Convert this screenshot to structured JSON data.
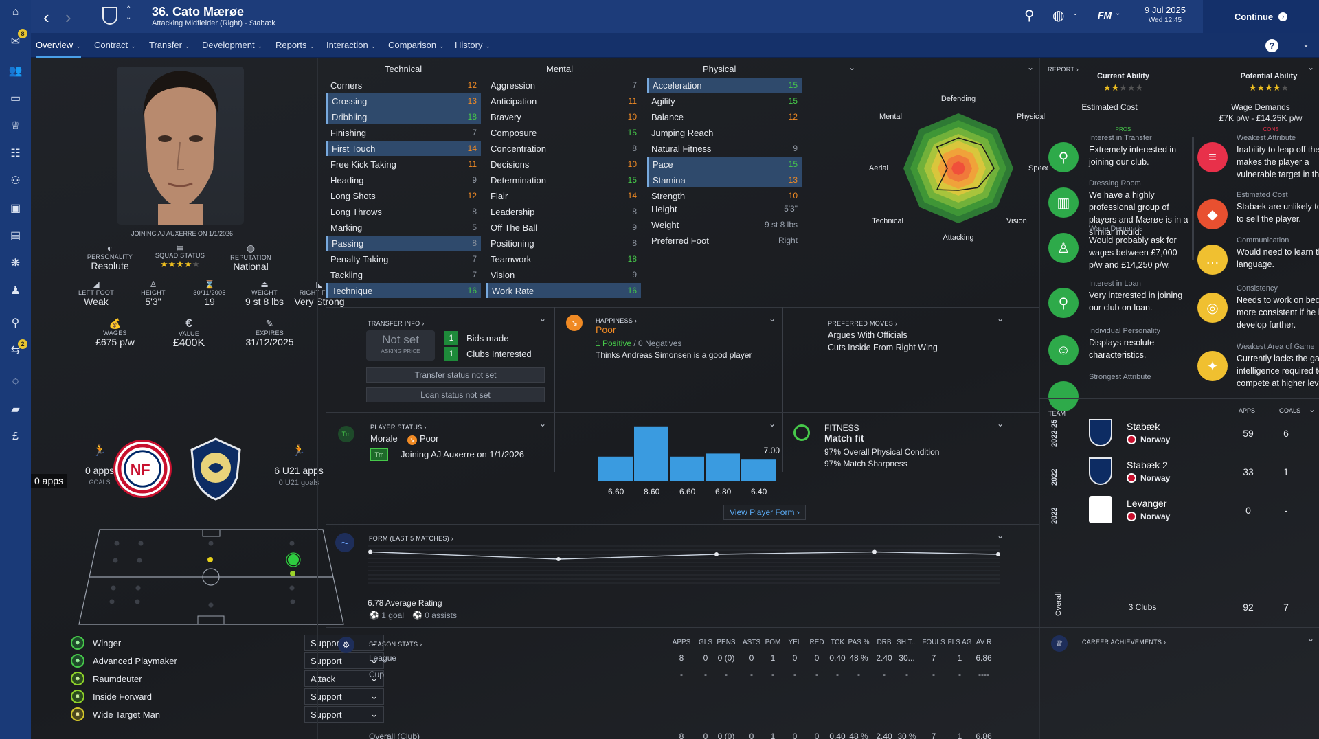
{
  "sidebar": {
    "inbox_badge": "8",
    "scout_badge": "2"
  },
  "header": {
    "player_name": "36. Cato Mærøe",
    "player_sub": "Attacking Midfielder (Right) - Stabæk",
    "date": "9 Jul 2025",
    "time": "Wed 12:45",
    "continue_label": "Continue",
    "fm_label": "FM"
  },
  "tabs": [
    "Overview",
    "Contract",
    "Transfer",
    "Development",
    "Reports",
    "Interaction",
    "Comparison",
    "History"
  ],
  "profile": {
    "joining": "JOINING AJ AUXERRE ON 1/1/2026",
    "personality_label": "PERSONALITY",
    "personality": "Resolute",
    "squad_label": "SQUAD STATUS",
    "reputation_label": "REPUTATION",
    "reputation": "National",
    "leftfoot_label": "LEFT FOOT",
    "leftfoot": "Weak",
    "height_label": "HEIGHT",
    "height": "5'3\"",
    "dob_label": "30/11/2005",
    "age": "19",
    "weight_label": "WEIGHT",
    "weight": "9 st 8 lbs",
    "rightfoot_label": "RIGHT FOOT",
    "rightfoot": "Very Strong",
    "wages_label": "WAGES",
    "wages": "£675 p/w",
    "value_label": "VALUE",
    "value": "£400K",
    "expires_label": "EXPIRES",
    "expires": "31/12/2025",
    "intl_apps": "0 apps",
    "intl_goals": "GOALS",
    "intl_tooltip": "0 apps",
    "u21_apps": "6 U21 apps",
    "u21_goals": "0 U21 goals"
  },
  "roles": [
    {
      "name": "Winger",
      "duty": "Support"
    },
    {
      "name": "Advanced Playmaker",
      "duty": "Support"
    },
    {
      "name": "Raumdeuter",
      "duty": "Attack"
    },
    {
      "name": "Inside Forward",
      "duty": "Support"
    },
    {
      "name": "Wide Target Man",
      "duty": "Support"
    }
  ],
  "attributes": {
    "technical_title": "Technical",
    "mental_title": "Mental",
    "physical_title": "Physical",
    "technical": [
      {
        "n": "Corners",
        "v": "12",
        "c": "#f08a24",
        "h": false
      },
      {
        "n": "Crossing",
        "v": "13",
        "c": "#f08a24",
        "h": true
      },
      {
        "n": "Dribbling",
        "v": "18",
        "c": "#46c84a",
        "h": true
      },
      {
        "n": "Finishing",
        "v": "7",
        "c": "#8c939e",
        "h": false
      },
      {
        "n": "First Touch",
        "v": "14",
        "c": "#f08a24",
        "h": true
      },
      {
        "n": "Free Kick Taking",
        "v": "11",
        "c": "#f08a24",
        "h": false
      },
      {
        "n": "Heading",
        "v": "9",
        "c": "#8c939e",
        "h": false
      },
      {
        "n": "Long Shots",
        "v": "12",
        "c": "#f08a24",
        "h": false
      },
      {
        "n": "Long Throws",
        "v": "8",
        "c": "#8c939e",
        "h": false
      },
      {
        "n": "Marking",
        "v": "5",
        "c": "#8c939e",
        "h": false
      },
      {
        "n": "Passing",
        "v": "8",
        "c": "#8c939e",
        "h": true
      },
      {
        "n": "Penalty Taking",
        "v": "7",
        "c": "#8c939e",
        "h": false
      },
      {
        "n": "Tackling",
        "v": "7",
        "c": "#8c939e",
        "h": false
      },
      {
        "n": "Technique",
        "v": "16",
        "c": "#46c84a",
        "h": true
      }
    ],
    "mental": [
      {
        "n": "Aggression",
        "v": "7",
        "c": "#8c939e",
        "h": false
      },
      {
        "n": "Anticipation",
        "v": "11",
        "c": "#f08a24",
        "h": false
      },
      {
        "n": "Bravery",
        "v": "10",
        "c": "#f08a24",
        "h": false
      },
      {
        "n": "Composure",
        "v": "15",
        "c": "#46c84a",
        "h": false
      },
      {
        "n": "Concentration",
        "v": "8",
        "c": "#8c939e",
        "h": false
      },
      {
        "n": "Decisions",
        "v": "10",
        "c": "#f08a24",
        "h": false
      },
      {
        "n": "Determination",
        "v": "15",
        "c": "#46c84a",
        "h": false
      },
      {
        "n": "Flair",
        "v": "14",
        "c": "#f08a24",
        "h": false
      },
      {
        "n": "Leadership",
        "v": "8",
        "c": "#8c939e",
        "h": false
      },
      {
        "n": "Off The Ball",
        "v": "9",
        "c": "#8c939e",
        "h": false
      },
      {
        "n": "Positioning",
        "v": "8",
        "c": "#8c939e",
        "h": false
      },
      {
        "n": "Teamwork",
        "v": "18",
        "c": "#46c84a",
        "h": false
      },
      {
        "n": "Vision",
        "v": "9",
        "c": "#8c939e",
        "h": false
      },
      {
        "n": "Work Rate",
        "v": "16",
        "c": "#46c84a",
        "h": true
      }
    ],
    "physical": [
      {
        "n": "Acceleration",
        "v": "15",
        "c": "#46c84a",
        "h": true
      },
      {
        "n": "Agility",
        "v": "15",
        "c": "#46c84a",
        "h": false
      },
      {
        "n": "Balance",
        "v": "12",
        "c": "#f08a24",
        "h": false
      },
      {
        "n": "Jumping Reach",
        "v": "",
        "c": "#8c939e",
        "h": false
      },
      {
        "n": "Natural Fitness",
        "v": "9",
        "c": "#8c939e",
        "h": false
      },
      {
        "n": "Pace",
        "v": "15",
        "c": "#46c84a",
        "h": true
      },
      {
        "n": "Stamina",
        "v": "13",
        "c": "#f08a24",
        "h": true
      },
      {
        "n": "Strength",
        "v": "10",
        "c": "#f08a24",
        "h": false
      }
    ],
    "extra": [
      {
        "n": "Height",
        "v": "5'3\""
      },
      {
        "n": "Weight",
        "v": "9 st 8 lbs"
      },
      {
        "n": "Preferred Foot",
        "v": "Right"
      }
    ]
  },
  "radar_labels": [
    "Defending",
    "Physical",
    "Speed",
    "Vision",
    "Attacking",
    "Technical",
    "Aerial",
    "Mental"
  ],
  "transfer": {
    "title": "TRANSFER INFO",
    "price": "Not set",
    "price_label": "ASKING PRICE",
    "bids_count": "1",
    "bids_label": "Bids made",
    "clubs_count": "1",
    "clubs_label": "Clubs Interested",
    "status": "Transfer status not set",
    "loan": "Loan status not set"
  },
  "happiness": {
    "title": "HAPPINESS",
    "value": "Poor",
    "positive": "1 Positive",
    "negatives": "/ 0 Negatives",
    "note": "Thinks Andreas Simonsen is a good player"
  },
  "preferred": {
    "title": "PREFERRED MOVES",
    "moves": [
      "Argues With Officials",
      "Cuts Inside From Right Wing"
    ]
  },
  "status": {
    "title": "PLAYER STATUS",
    "morale_label": "Morale",
    "morale": "Poor",
    "tm_icon": "Tm",
    "note": "Joining AJ Auxerre on 1/1/2026"
  },
  "form_bars": {
    "values": [
      6.6,
      8.6,
      6.6,
      6.8,
      6.4
    ],
    "labels": [
      "6.60",
      "8.60",
      "6.60",
      "6.80",
      "6.40"
    ],
    "ref": "7.00",
    "link": "View Player Form"
  },
  "fitness": {
    "title": "FITNESS",
    "status": "Match fit",
    "cond": "97% Overall Physical Condition",
    "sharp": "97% Match Sharpness"
  },
  "form_line": {
    "title": "FORM (LAST 5 MATCHES)",
    "avg": "6.78 Average Rating",
    "goals": "1 goal",
    "assists": "0 assists",
    "values": [
      6.9,
      6.6,
      6.8,
      6.9,
      6.8
    ]
  },
  "season": {
    "title": "SEASON STATS",
    "headers": [
      "APPS",
      "GLS",
      "PENS",
      "ASTS",
      "POM",
      "YEL",
      "RED",
      "TCK",
      "PAS %",
      "DRB",
      "SH T...",
      "FOULS",
      "FLS AG",
      "AV R"
    ],
    "rows": [
      {
        "name": "League",
        "vals": [
          "8",
          "0",
          "0 (0)",
          "0",
          "1",
          "0",
          "0",
          "0.40",
          "48 %",
          "2.40",
          "30...",
          "7",
          "1",
          "6.86"
        ]
      },
      {
        "name": "Cup",
        "vals": [
          "-",
          "-",
          "-",
          "-",
          "-",
          "-",
          "-",
          "-",
          "-",
          "-",
          "-",
          "-",
          "-",
          "----"
        ]
      },
      {
        "name": "Overall (Club)",
        "vals": [
          "8",
          "0",
          "0 (0)",
          "0",
          "1",
          "0",
          "0",
          "0.40",
          "48 %",
          "2.40",
          "30 %",
          "7",
          "1",
          "6.86"
        ]
      }
    ]
  },
  "report": {
    "title": "REPORT",
    "ca_label": "Current Ability",
    "pa_label": "Potential Ability",
    "cost_label": "Estimated Cost",
    "wage_label": "Wage Demands",
    "wage_value": "£7K p/w - £14.25K p/w",
    "pros_label": "PROS",
    "cons_label": "CONS",
    "pros": [
      {
        "sub": "Interest in Transfer",
        "text": "Extremely interested in joining our club."
      },
      {
        "sub": "Dressing Room",
        "text": "We have a highly professional group of players and Mærøe is in a similar mould."
      },
      {
        "sub": "Wage Demands",
        "text": "Would probably ask for wages between £7,000 p/w and £14,250 p/w."
      },
      {
        "sub": "Interest in Loan",
        "text": "Very interested in joining our club on loan."
      },
      {
        "sub": "Individual Personality",
        "text": "Displays resolute characteristics."
      },
      {
        "sub": "Strongest Attribute",
        "text": ""
      }
    ],
    "cons": [
      {
        "sub": "Weakest Attribute",
        "text": "Inability to leap off the ground makes the player a vulnerable target in the air."
      },
      {
        "sub": "Estimated Cost",
        "text": "Stabæk are unlikely to want to sell the player."
      },
      {
        "sub": "Communication",
        "text": "Would need to learn the language."
      },
      {
        "sub": "Consistency",
        "text": "Needs to work on becoming more consistent if he is to develop further."
      },
      {
        "sub": "Weakest Area of Game",
        "text": "Currently lacks the game intelligence required to compete at higher levels."
      }
    ]
  },
  "career": {
    "team_label": "TEAM",
    "apps_label": "APPS",
    "goals_label": "GOALS",
    "rows": [
      {
        "season": "2022-25",
        "club": "Stabæk",
        "nation": "Norway",
        "apps": "59",
        "goals": "6"
      },
      {
        "season": "2022",
        "club": "Stabæk 2",
        "nation": "Norway",
        "apps": "33",
        "goals": "1"
      },
      {
        "season": "2022",
        "club": "Levanger",
        "nation": "Norway",
        "apps": "0",
        "goals": "-"
      }
    ],
    "overall_label": "Overall",
    "clubs": "3 Clubs",
    "total_apps": "92",
    "total_goals": "7",
    "achievements": "CAREER ACHIEVEMENTS"
  }
}
